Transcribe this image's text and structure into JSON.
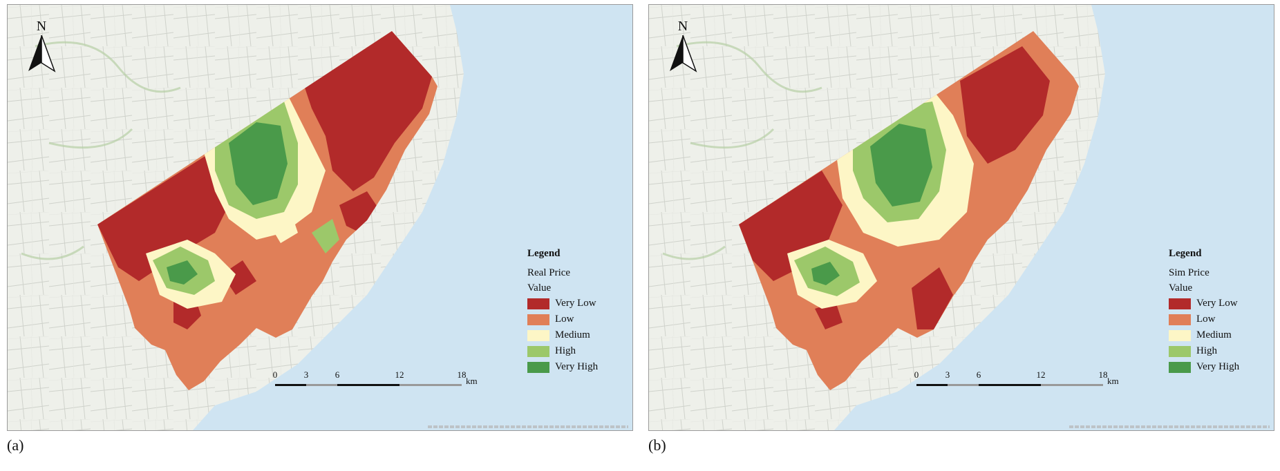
{
  "panels": [
    {
      "caption": "(a)",
      "north_label": "N",
      "legend": {
        "title": "Legend",
        "layer": "Real Price",
        "field": "Value",
        "items": [
          "Very Low",
          "Low",
          "Medium",
          "High",
          "Very High"
        ]
      },
      "scale": {
        "ticks": [
          "0",
          "3",
          "6",
          "12",
          "18"
        ],
        "unit": "km"
      }
    },
    {
      "caption": "(b)",
      "north_label": "N",
      "legend": {
        "title": "Legend",
        "layer": "Sim Price",
        "field": "Value",
        "items": [
          "Very Low",
          "Low",
          "Medium",
          "High",
          "Very High"
        ]
      },
      "scale": {
        "ticks": [
          "0",
          "3",
          "6",
          "12",
          "18"
        ],
        "unit": "km"
      }
    }
  ],
  "colors": {
    "very_low": "#b22a2a",
    "low": "#e07f58",
    "medium": "#fdf6c6",
    "high": "#9cc86a",
    "very_high": "#4a9a4a",
    "water": "#cfe4f2",
    "basemap": "#eef0ea"
  }
}
